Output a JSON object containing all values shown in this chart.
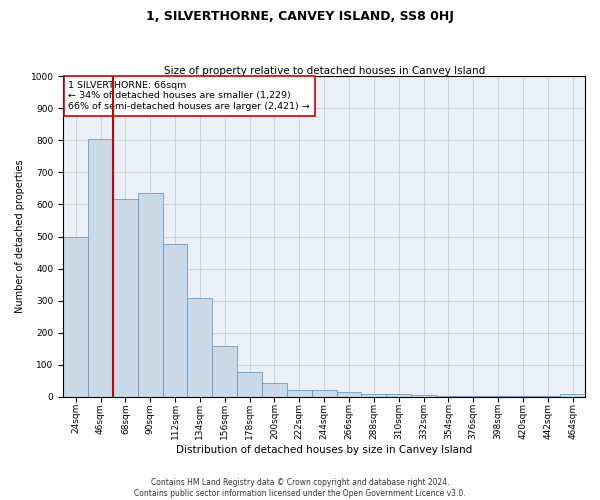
{
  "title": "1, SILVERTHORNE, CANVEY ISLAND, SS8 0HJ",
  "subtitle": "Size of property relative to detached houses in Canvey Island",
  "xlabel": "Distribution of detached houses by size in Canvey Island",
  "ylabel": "Number of detached properties",
  "footnote1": "Contains HM Land Registry data © Crown copyright and database right 2024.",
  "footnote2": "Contains public sector information licensed under the Open Government Licence v3.0.",
  "categories": [
    "24sqm",
    "46sqm",
    "68sqm",
    "90sqm",
    "112sqm",
    "134sqm",
    "156sqm",
    "178sqm",
    "200sqm",
    "222sqm",
    "244sqm",
    "266sqm",
    "288sqm",
    "310sqm",
    "332sqm",
    "354sqm",
    "376sqm",
    "398sqm",
    "420sqm",
    "442sqm",
    "464sqm"
  ],
  "values": [
    500,
    805,
    618,
    635,
    478,
    308,
    160,
    78,
    43,
    22,
    22,
    16,
    10,
    10,
    5,
    3,
    2,
    2,
    1,
    1,
    8
  ],
  "bar_color": "#c9d9e8",
  "bar_edge_color": "#5b8db8",
  "vline_x_index": 2,
  "vline_color": "#cc0000",
  "annotation_text": "1 SILVERTHORNE: 66sqm\n← 34% of detached houses are smaller (1,229)\n66% of semi-detached houses are larger (2,421) →",
  "annotation_box_color": "#ffffff",
  "annotation_box_edge_color": "#cc0000",
  "ylim": [
    0,
    1000
  ],
  "yticks": [
    0,
    100,
    200,
    300,
    400,
    500,
    600,
    700,
    800,
    900,
    1000
  ],
  "grid_color": "#c8d4e0",
  "bg_color": "#eaf0f6",
  "title_fontsize": 9,
  "subtitle_fontsize": 7.5,
  "xlabel_fontsize": 7.5,
  "ylabel_fontsize": 7,
  "tick_fontsize": 6.5,
  "annotation_fontsize": 6.8,
  "footnote_fontsize": 5.5
}
